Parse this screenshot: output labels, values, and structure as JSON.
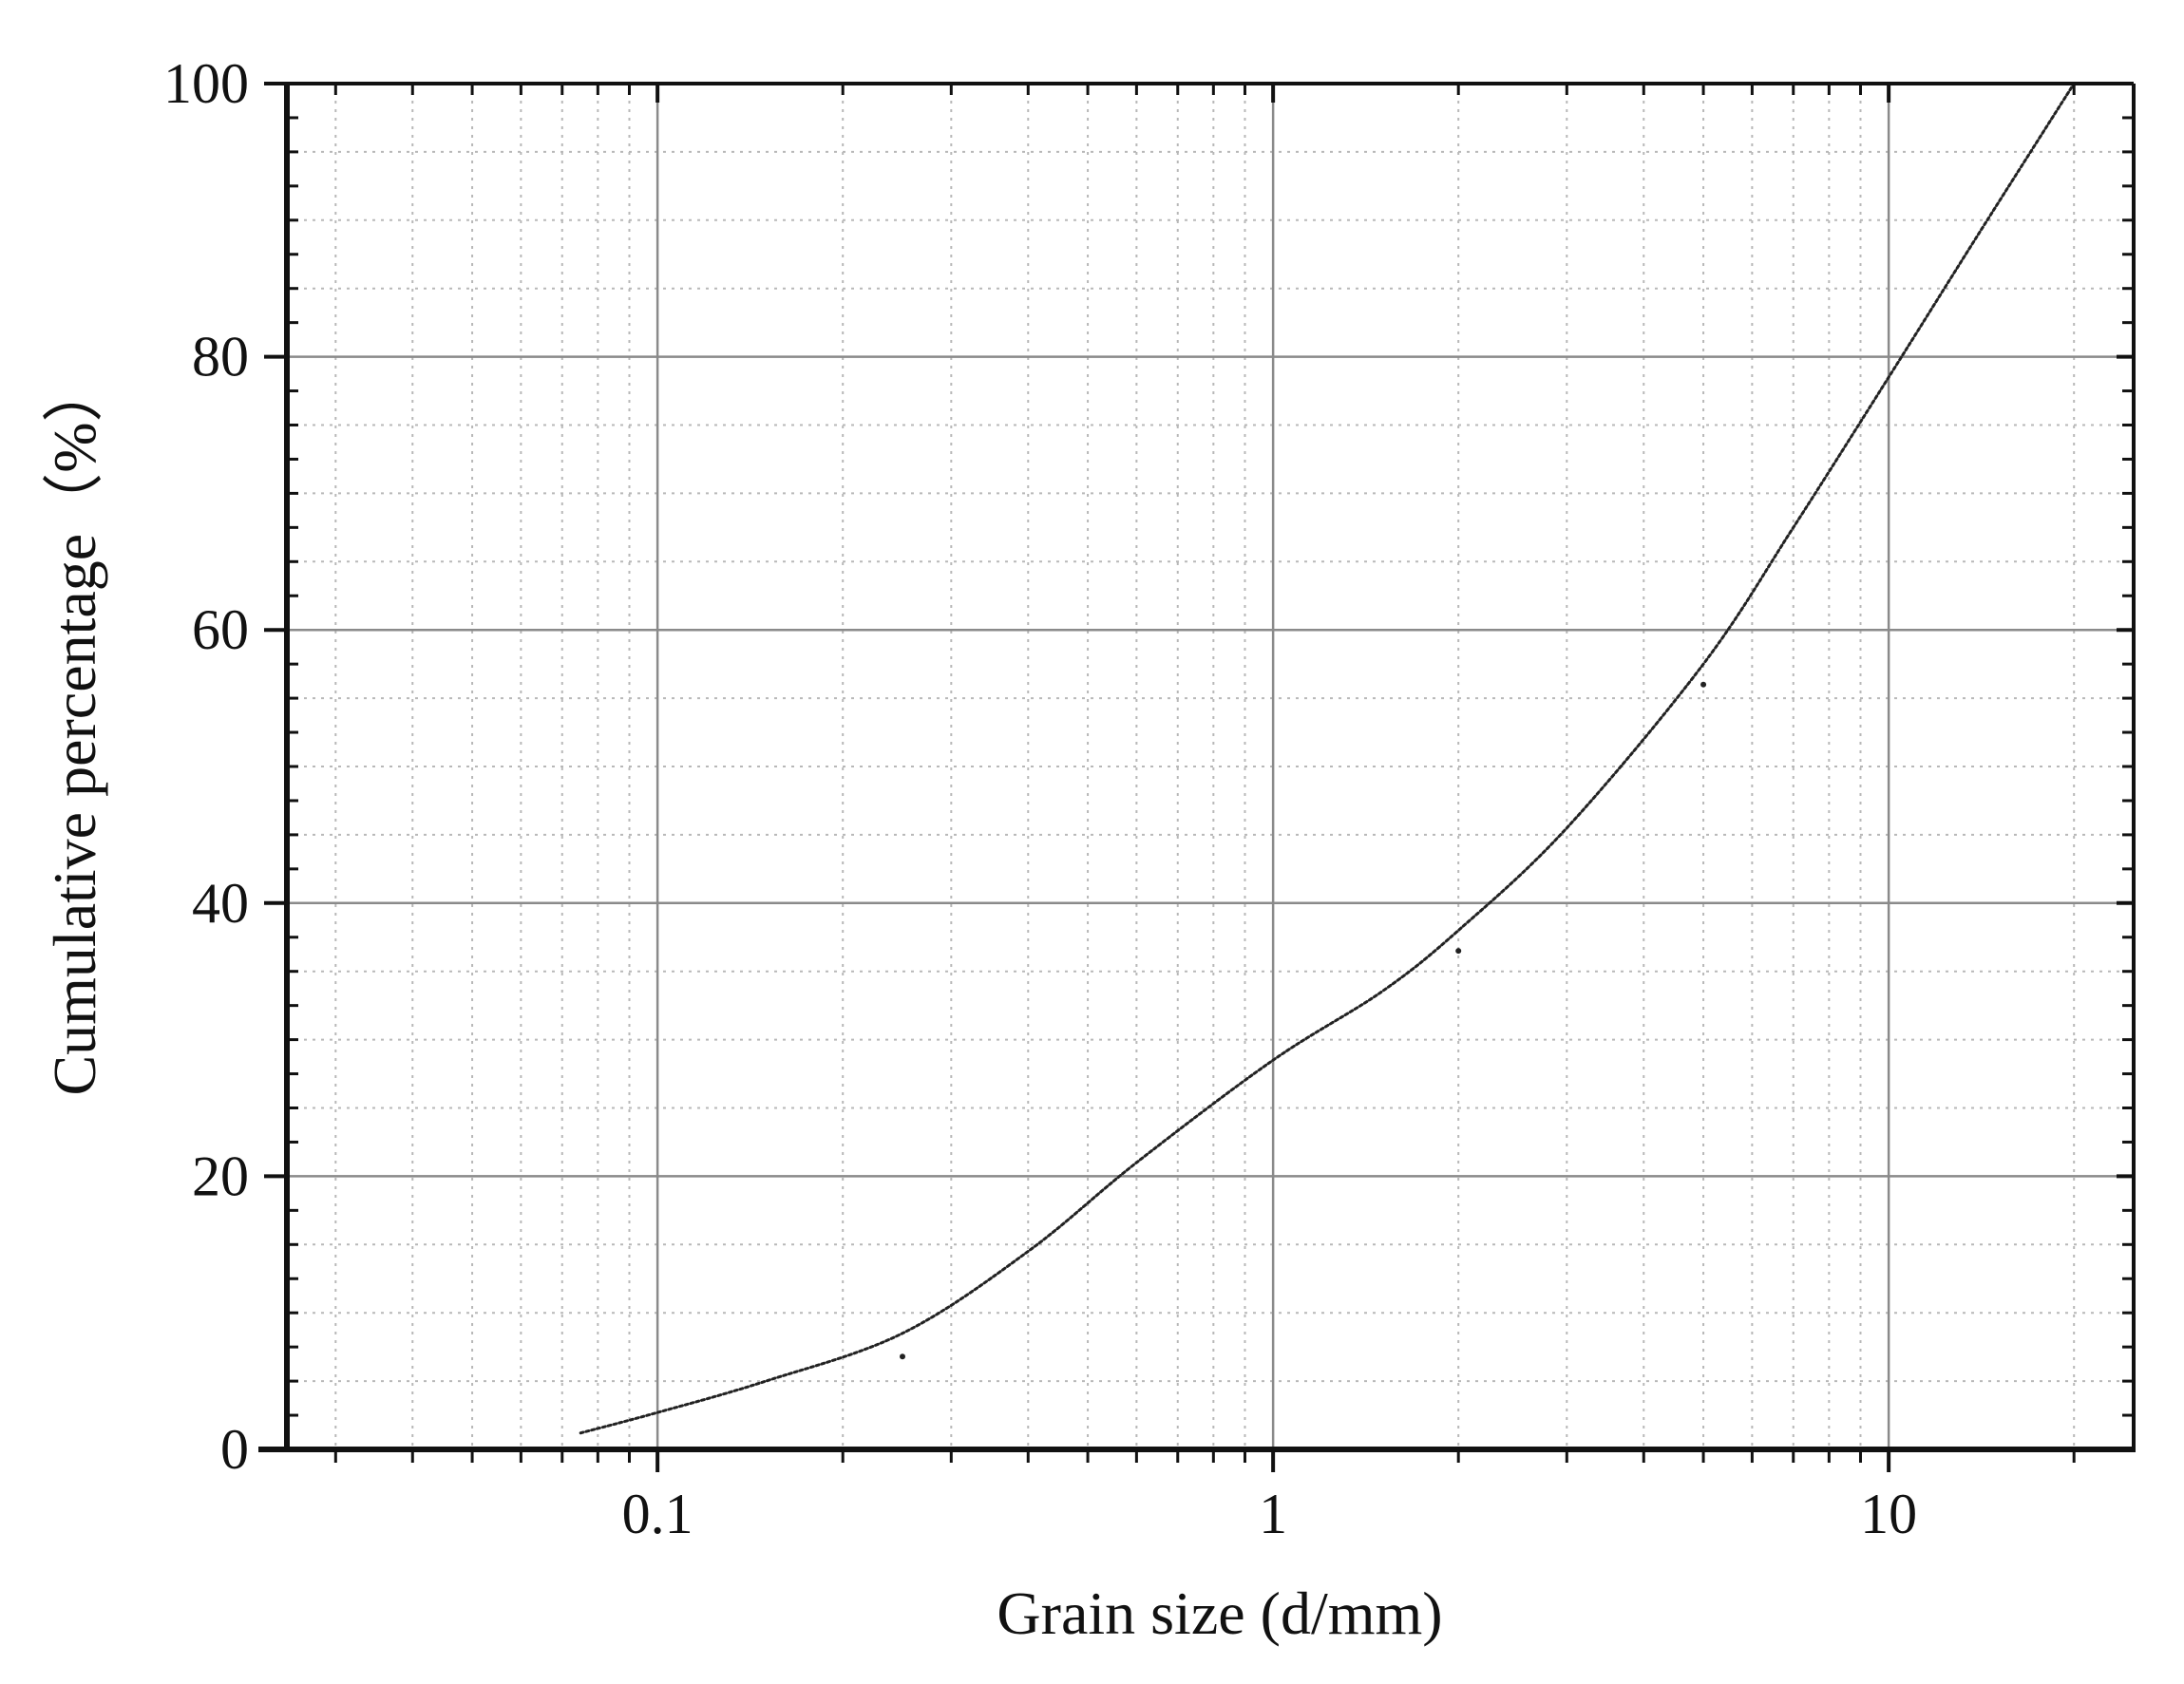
{
  "chart_data": {
    "type": "line",
    "xlabel": "Grain size (d/mm)",
    "ylabel": "Cumulative percentage（%）",
    "x_scale": "log",
    "xlim": [
      0.025,
      25
    ],
    "ylim": [
      0,
      100
    ],
    "x_ticks": [
      {
        "value": 0.1,
        "label": "0.1"
      },
      {
        "value": 1,
        "label": "1"
      },
      {
        "value": 10,
        "label": "10"
      }
    ],
    "y_ticks": [
      {
        "value": 0,
        "label": "0"
      },
      {
        "value": 20,
        "label": "20"
      },
      {
        "value": 40,
        "label": "40"
      },
      {
        "value": 60,
        "label": "60"
      },
      {
        "value": 80,
        "label": "80"
      },
      {
        "value": 100,
        "label": "100"
      }
    ],
    "grid": true,
    "legend": "none",
    "series": [
      {
        "style": "dotted-line",
        "color": "#222222",
        "x": [
          0.075,
          0.1,
          0.15,
          0.25,
          0.4,
          0.6,
          1,
          1.5,
          2,
          3,
          5,
          7,
          10,
          14,
          20
        ],
        "y": [
          1.2,
          2.7,
          5.0,
          8.5,
          14.5,
          21.0,
          28.5,
          33.5,
          38.0,
          45.5,
          57.5,
          67.5,
          78.5,
          89.0,
          100
        ]
      }
    ],
    "markers": [
      {
        "x": 0.25,
        "y": 6.8
      },
      {
        "x": 2,
        "y": 36.5
      },
      {
        "x": 5,
        "y": 56.0
      }
    ]
  }
}
